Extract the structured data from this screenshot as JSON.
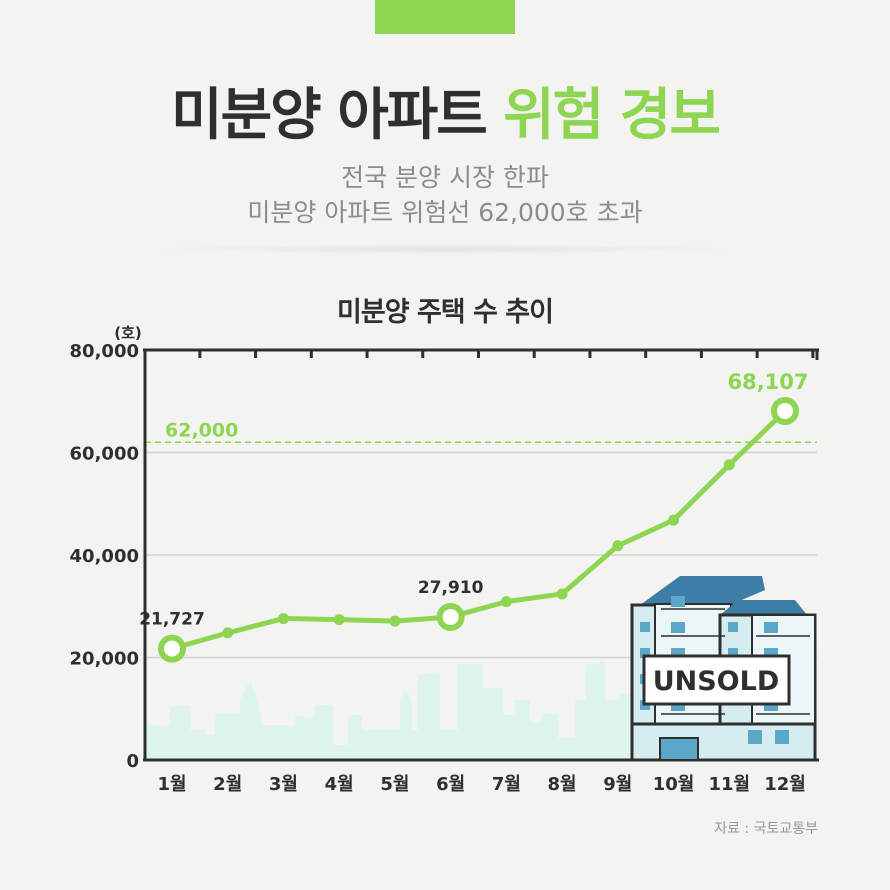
{
  "header": {
    "title_main": "미분양 아파트 ",
    "title_accent": "위험 경보",
    "subtitle_line1": "전국 분양 시장 한파",
    "subtitle_line2": "미분양 아파트 위험선 62,000호 초과"
  },
  "source": "자료 : 국토교통부",
  "colors": {
    "accent": "#8ed652",
    "text": "#2f2f2f",
    "skyline": "#def5ec",
    "building": "#d9eef0",
    "roof": "#3d7ea6"
  },
  "illustration": {
    "sign_text": "UNSOLD",
    "icon": "apartment-building-icon"
  },
  "chart_data": {
    "type": "line",
    "title": "미분양 주택 수 추이",
    "ylabel": "(호)",
    "categories": [
      "1월",
      "2월",
      "3월",
      "4월",
      "5월",
      "6월",
      "7월",
      "8월",
      "9월",
      "10월",
      "11월",
      "12월"
    ],
    "values": [
      21727,
      24800,
      27600,
      27400,
      27100,
      27910,
      30900,
      32400,
      41800,
      46800,
      57600,
      68107
    ],
    "ylim": [
      0,
      80000
    ],
    "yticks": [
      0,
      20000,
      40000,
      60000,
      80000
    ],
    "ytick_labels": [
      "0",
      "20,000",
      "40,000",
      "60,000",
      "80,000"
    ],
    "highlighted_points": [
      0,
      5,
      11
    ],
    "data_labels": [
      {
        "index": 0,
        "text": "21,727"
      },
      {
        "index": 5,
        "text": "27,910"
      },
      {
        "index": 11,
        "text": "68,107"
      }
    ],
    "threshold": {
      "value": 62000,
      "label": "62,000"
    },
    "grid": true
  }
}
